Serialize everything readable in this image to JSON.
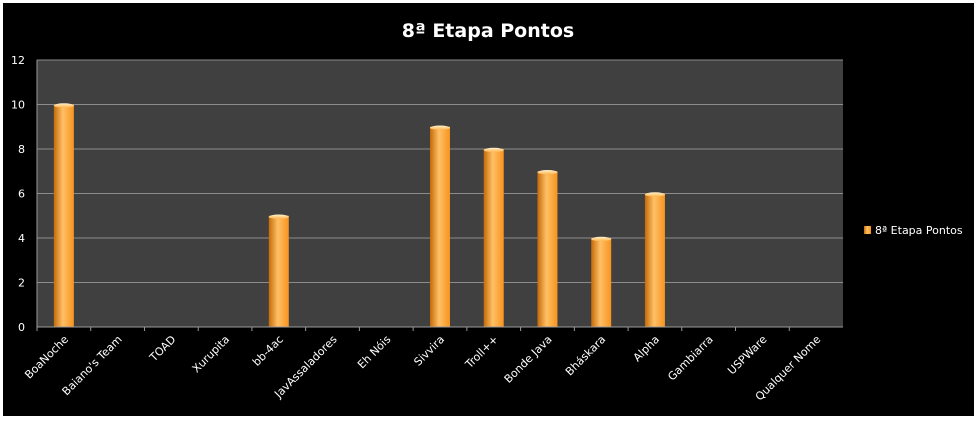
{
  "chart_data": {
    "type": "bar",
    "title": "8ª Etapa Pontos",
    "xlabel": "",
    "ylabel": "",
    "ylim": [
      0,
      12
    ],
    "yticks": [
      0,
      2,
      4,
      6,
      8,
      10,
      12
    ],
    "grid": true,
    "legend_position": "right",
    "categories": [
      "BoaNoche",
      "Baiano's Team",
      "TOAD",
      "Xurupita",
      "bb-4ac",
      "JavAssaladores",
      "Eh Nóis",
      "Sivvira",
      "Troll++",
      "Bonde Java",
      "Bháskara",
      "Alpha",
      "Gambiarra",
      "USPWare",
      "Qualquer Nome"
    ],
    "series": [
      {
        "name": "8ª Etapa Pontos",
        "values": [
          10,
          0,
          0,
          0,
          5,
          0,
          0,
          9,
          8,
          7,
          4,
          6,
          0,
          0,
          0
        ]
      }
    ]
  },
  "colors": {
    "background": "#000000",
    "outer_border": "#ffffff",
    "plot_area": "#404040",
    "gridline": "#8c8c8c",
    "bar_light": "#ffc066",
    "bar_mid": "#f7931e",
    "bar_dark": "#c56a08",
    "text": "#ffffff"
  }
}
